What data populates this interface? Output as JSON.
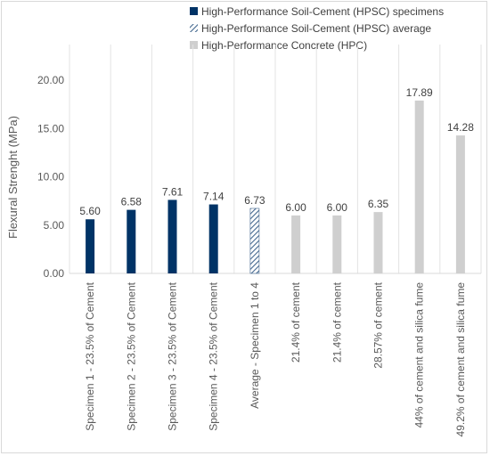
{
  "chart_data": {
    "type": "bar",
    "title": "",
    "ylabel": "Flexural Strenght (MPa)",
    "xlabel": "",
    "ylim": [
      0,
      20
    ],
    "yticks": [
      "0.00",
      "5.00",
      "10.00",
      "15.00",
      "20.00"
    ],
    "grid": "vertical",
    "legend_position": "top-right",
    "categories": [
      "Specimen 1 - 23.5% of Cement",
      "Specimen 2 - 23.5% of Cement",
      "Specimen 3 - 23.5% of Cement",
      "Specimen 4 - 23.5% of Cement",
      "Average - Specimen 1 to 4",
      "21.4% of cement",
      "21.4% of cement",
      "28.57% of cement",
      "44% of cement and silica fume",
      "49.2% of cement and silica fume"
    ],
    "values": [
      5.6,
      6.58,
      7.61,
      7.14,
      6.73,
      6.0,
      6.0,
      6.35,
      17.89,
      14.28
    ],
    "value_labels": [
      "5.60",
      "6.58",
      "7.61",
      "7.14",
      "6.73",
      "6.00",
      "6.00",
      "6.35",
      "17.89",
      "14.28"
    ],
    "bar_groups": [
      "hpsc",
      "hpsc",
      "hpsc",
      "hpsc",
      "avg",
      "hpc",
      "hpc",
      "hpc",
      "hpc",
      "hpc"
    ],
    "series": [
      {
        "key": "hpsc",
        "name": "High-Performance Soil-Cement (HPSC) specimens",
        "color": "#003366",
        "pattern": "solid"
      },
      {
        "key": "avg",
        "name": "High-Performance Soil-Cement (HPSC) average",
        "color": "#44688f",
        "pattern": "diagonal-hatch"
      },
      {
        "key": "hpc",
        "name": "High-Performance Concrete (HPC)",
        "color": "#cfcfcf",
        "pattern": "solid"
      }
    ]
  }
}
